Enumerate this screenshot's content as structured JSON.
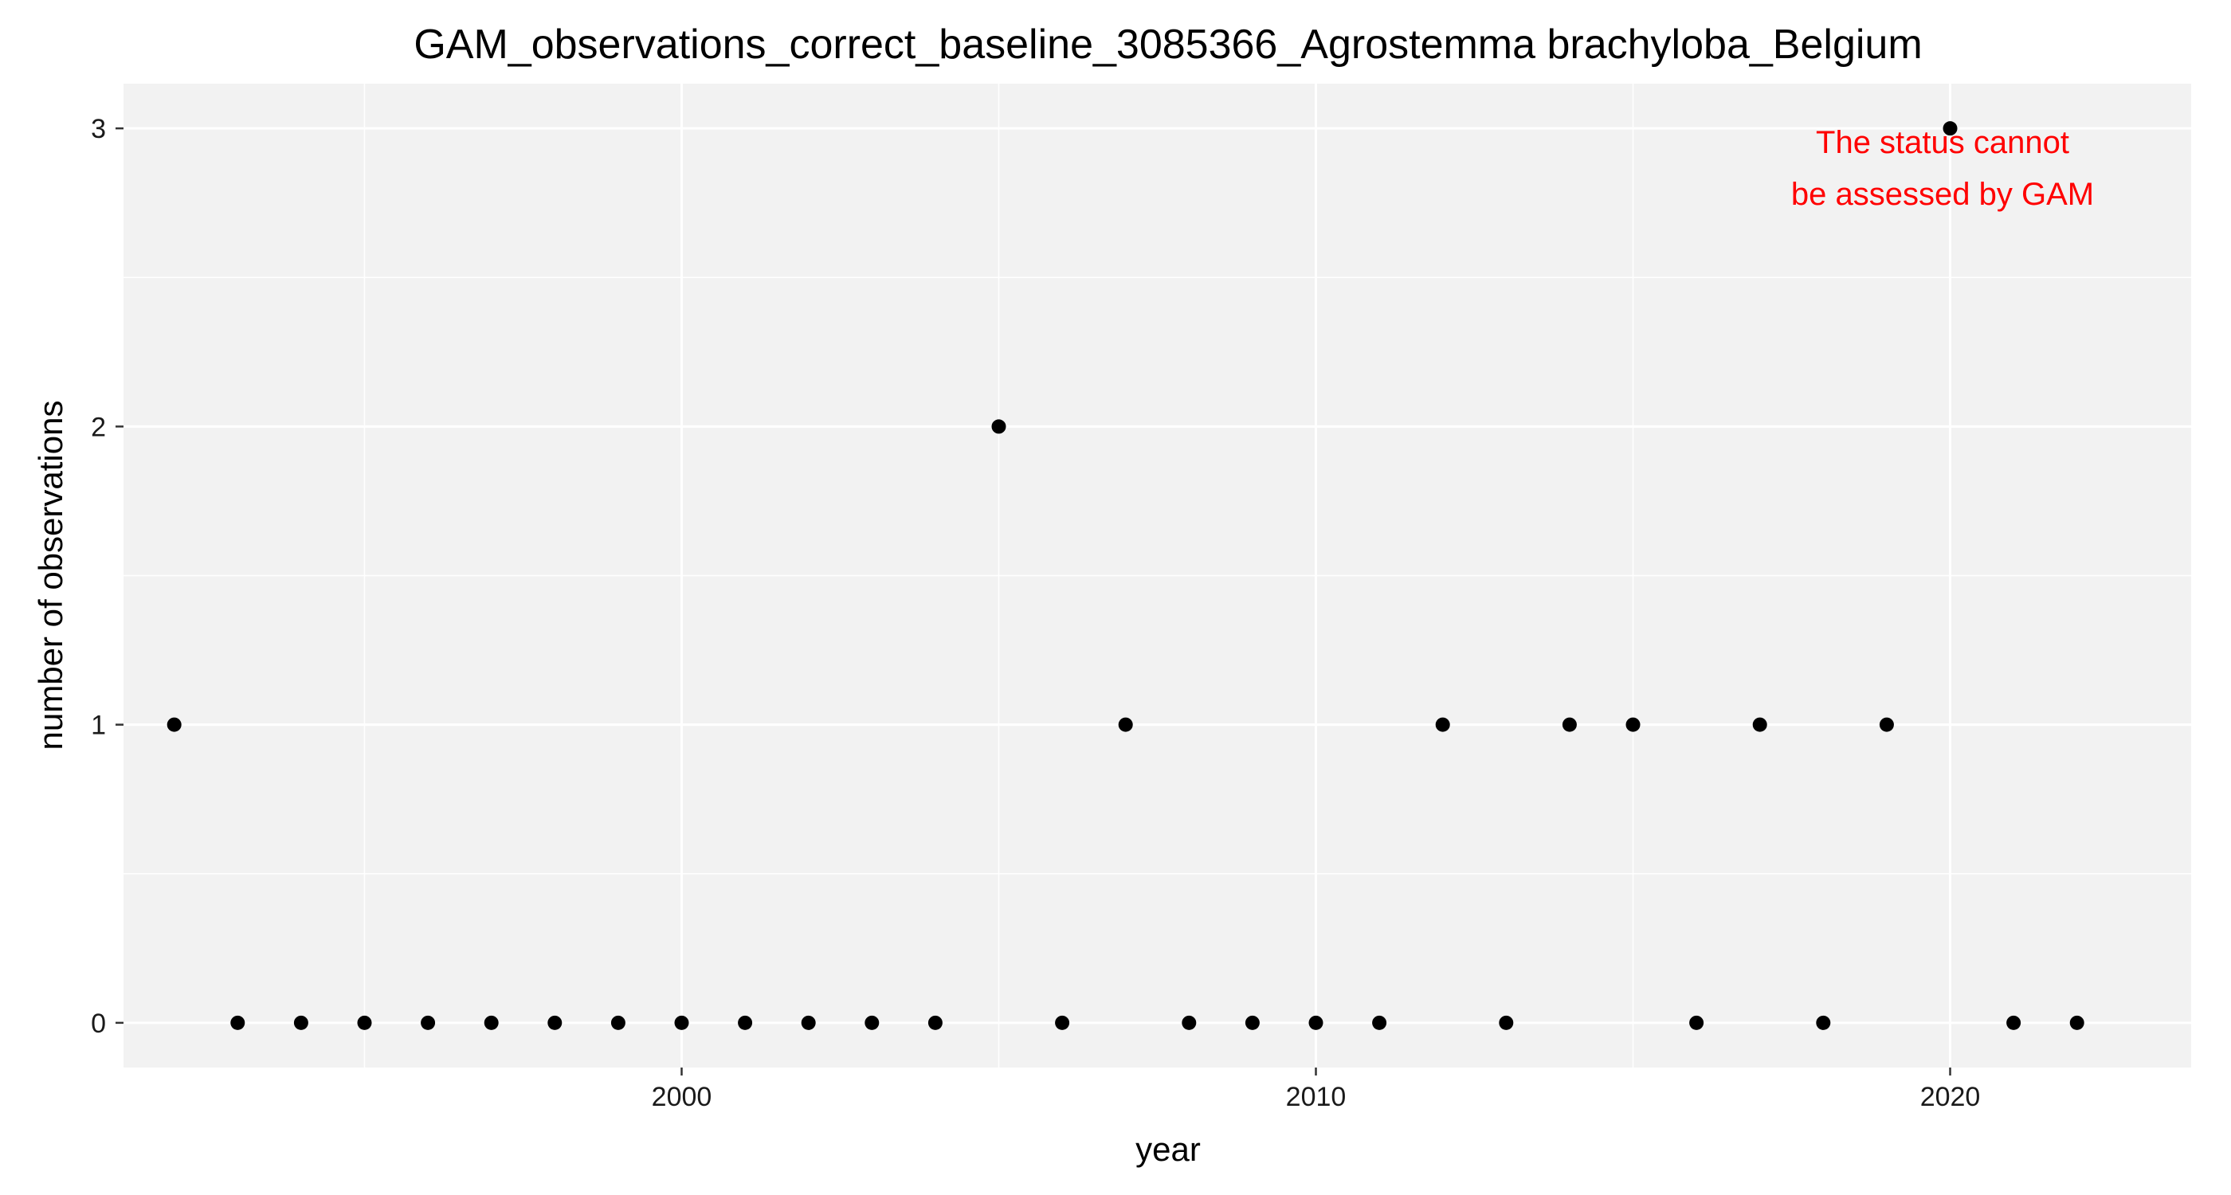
{
  "chart_data": {
    "type": "scatter",
    "title": "GAM_observations_correct_baseline_3085366_Agrostemma brachyloba_Belgium",
    "xlabel": "year",
    "ylabel": "number of observations",
    "xlim": [
      1991.2,
      2023.8
    ],
    "ylim": [
      -0.15,
      3.15
    ],
    "x_major_ticks": [
      2000,
      2010,
      2020
    ],
    "x_minor_ticks": [
      1995,
      2005,
      2015
    ],
    "y_major_ticks": [
      0,
      1,
      2,
      3
    ],
    "y_minor_ticks": [
      0.5,
      1.5,
      2.5
    ],
    "grid": true,
    "legend": "none",
    "x": [
      1992,
      1993,
      1994,
      1995,
      1996,
      1997,
      1998,
      1999,
      2000,
      2001,
      2002,
      2003,
      2004,
      2005,
      2006,
      2007,
      2008,
      2009,
      2010,
      2011,
      2012,
      2013,
      2014,
      2015,
      2016,
      2017,
      2018,
      2019,
      2020,
      2021,
      2022
    ],
    "y": [
      1,
      0,
      0,
      0,
      0,
      0,
      0,
      0,
      0,
      0,
      0,
      0,
      0,
      2,
      0,
      1,
      0,
      0,
      0,
      0,
      1,
      0,
      1,
      1,
      0,
      1,
      0,
      1,
      3,
      0,
      0
    ],
    "point_color": "#000000",
    "panel_color": "#f2f2f2",
    "annotation": {
      "lines": [
        "The status cannot",
        "be assessed by GAM"
      ],
      "color": "#ff0000",
      "position": "top-right"
    }
  }
}
